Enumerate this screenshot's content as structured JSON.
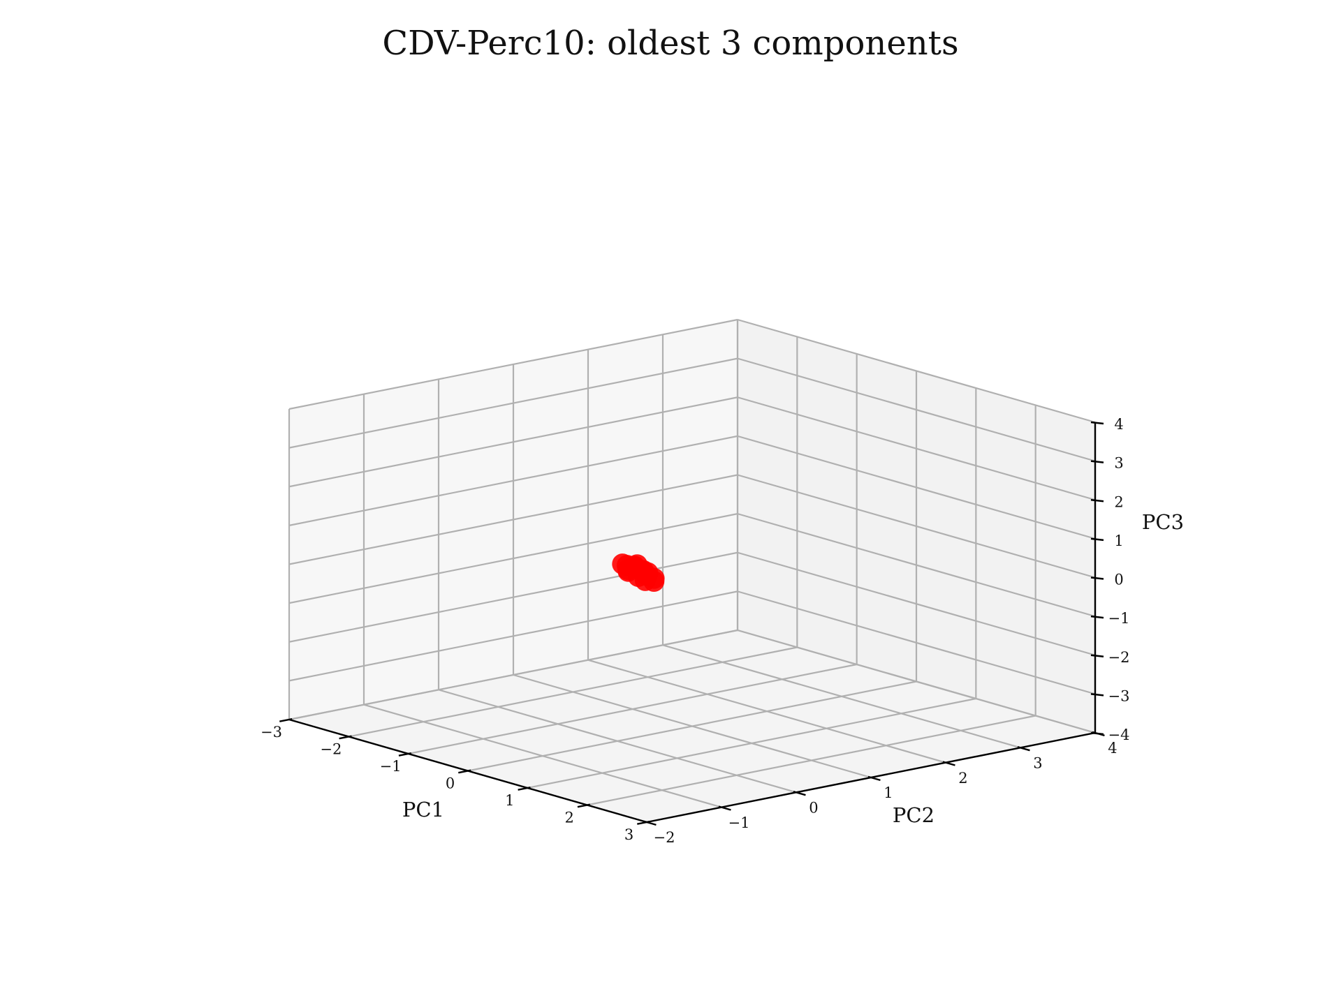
{
  "chart_data": {
    "type": "scatter",
    "title": "CDV-Perc10: oldest 3 components",
    "xlabel": "PC1",
    "ylabel": "PC2",
    "zlabel": "PC3",
    "xlim": [
      -3,
      3
    ],
    "ylim": [
      -2,
      4
    ],
    "zlim": [
      -4,
      4
    ],
    "x_ticks": [
      -3,
      -2,
      -1,
      0,
      1,
      2,
      3
    ],
    "y_ticks": [
      -2,
      -1,
      0,
      1,
      2,
      3,
      4
    ],
    "z_ticks": [
      -4,
      -3,
      -2,
      -1,
      0,
      1,
      2,
      3,
      4
    ],
    "x_tick_labels": [
      "−3",
      "−2",
      "−1",
      "0",
      "1",
      "2",
      "3"
    ],
    "y_tick_labels": [
      "−2",
      "−1",
      "0",
      "1",
      "2",
      "3",
      "4"
    ],
    "z_tick_labels": [
      "−4",
      "−3",
      "−2",
      "−1",
      "0",
      "1",
      "2",
      "3",
      "4"
    ],
    "grid": true,
    "marker_color": "#ff0000",
    "points": [
      {
        "x": 0.1,
        "y": 0.05,
        "z": 0.55
      },
      {
        "x": 0.14,
        "y": 0.12,
        "z": 0.52
      },
      {
        "x": 0.08,
        "y": 0.2,
        "z": 0.5
      },
      {
        "x": 0.18,
        "y": 0.0,
        "z": 0.45
      },
      {
        "x": 0.05,
        "y": 0.1,
        "z": 0.4
      },
      {
        "x": 0.2,
        "y": 0.18,
        "z": 0.4
      },
      {
        "x": 0.12,
        "y": 0.25,
        "z": 0.35
      },
      {
        "x": 0.25,
        "y": 0.08,
        "z": 0.32
      },
      {
        "x": 0.1,
        "y": 0.15,
        "z": 0.48
      },
      {
        "x": 0.22,
        "y": 0.22,
        "z": 0.28
      },
      {
        "x": 0.28,
        "y": 0.15,
        "z": 0.2
      },
      {
        "x": 0.3,
        "y": 0.25,
        "z": 0.15
      },
      {
        "x": 0.24,
        "y": 0.3,
        "z": 0.18
      },
      {
        "x": 0.16,
        "y": 0.28,
        "z": 0.3
      },
      {
        "x": 0.06,
        "y": 0.02,
        "z": 0.58
      }
    ]
  }
}
